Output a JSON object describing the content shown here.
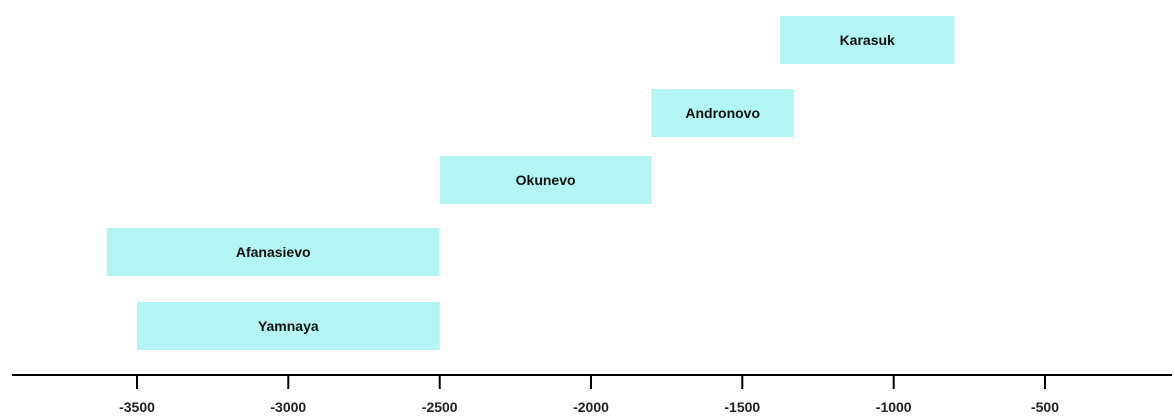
{
  "chart_data": {
    "type": "bar",
    "orientation": "horizontal",
    "xlabel": "",
    "ylabel": "",
    "xlim": [
      -3600,
      -200
    ],
    "x_ticks": [
      -3500,
      -3000,
      -2500,
      -2000,
      -1500,
      -1000,
      -500
    ],
    "x_tick_labels": [
      "-3500",
      "-3000",
      "-2500",
      "-2000",
      "-1500",
      "-1000",
      "-500"
    ],
    "grid": false,
    "legend": "none",
    "bar_color": "#b3f5f5",
    "axis_color": "#000000",
    "series": [
      {
        "label": "Yamnaya",
        "start": -3500,
        "end": -2500
      },
      {
        "label": "Afanasievo",
        "start": -3600,
        "end": -2500
      },
      {
        "label": "Okunevo",
        "start": -2500,
        "end": -1800
      },
      {
        "label": "Andronovo",
        "start": -1800,
        "end": -1330
      },
      {
        "label": "Karasuk",
        "start": -1375,
        "end": -800
      }
    ]
  }
}
